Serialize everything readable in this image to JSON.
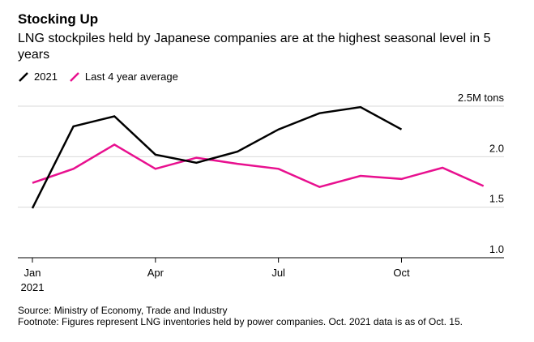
{
  "title": "Stocking Up",
  "subtitle": "LNG stockpiles held by Japanese companies are at the highest seasonal level in 5 years",
  "legend": [
    {
      "label": "2021",
      "color": "#000000"
    },
    {
      "label": "Last 4 year average",
      "color": "#e8108f"
    }
  ],
  "source": "Source: Ministry of Economy, Trade and Industry",
  "footnote": "Footnote: Figures represent LNG inventories held by power companies. Oct. 2021 data is as of Oct. 15.",
  "chart_data": {
    "type": "line",
    "title": "Stocking Up",
    "ylabel": "2.5M tons",
    "ylim": [
      1.0,
      2.5
    ],
    "yticks": [
      {
        "value": 2.5,
        "label": "2.5M tons"
      },
      {
        "value": 2.0,
        "label": "2.0"
      },
      {
        "value": 1.5,
        "label": "1.5"
      },
      {
        "value": 1.0,
        "label": "1.0"
      }
    ],
    "xticks": [
      {
        "month": 0,
        "label": "Jan",
        "sublabel": "2021"
      },
      {
        "month": 3,
        "label": "Apr",
        "sublabel": ""
      },
      {
        "month": 6,
        "label": "Jul",
        "sublabel": ""
      },
      {
        "month": 9,
        "label": "Oct",
        "sublabel": ""
      }
    ],
    "xlim": [
      0,
      11.5
    ],
    "series": [
      {
        "name": "2021",
        "color": "#000000",
        "x": [
          0,
          1,
          2,
          3,
          4,
          5,
          6,
          7,
          8,
          9
        ],
        "values": [
          1.49,
          2.3,
          2.4,
          2.02,
          1.94,
          2.05,
          2.27,
          2.43,
          2.49,
          2.27
        ]
      },
      {
        "name": "Last 4 year average",
        "color": "#e8108f",
        "x": [
          0,
          1,
          2,
          3,
          4,
          5,
          6,
          7,
          8,
          9,
          10,
          11
        ],
        "values": [
          1.74,
          1.88,
          2.12,
          1.88,
          1.99,
          1.93,
          1.88,
          1.7,
          1.81,
          1.78,
          1.89,
          1.71
        ]
      }
    ]
  }
}
